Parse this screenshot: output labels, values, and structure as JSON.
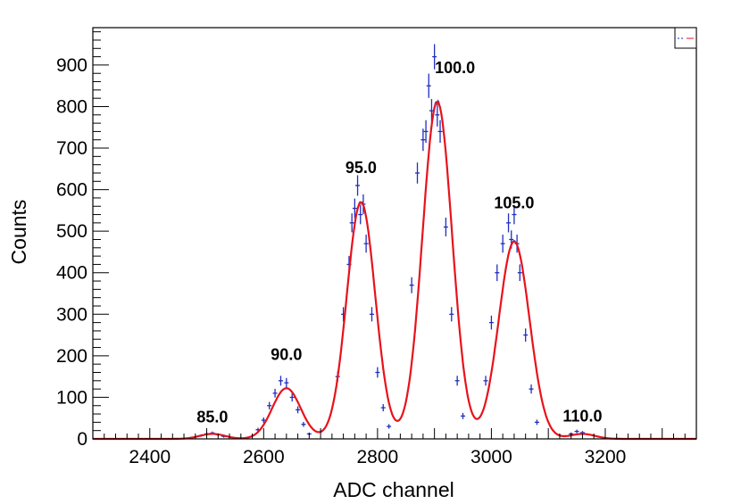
{
  "chart_data": {
    "type": "line",
    "title": "",
    "xlabel": "ADC channel",
    "ylabel": "Counts",
    "xlim": [
      2300,
      3360
    ],
    "ylim": [
      0,
      990
    ],
    "grid": false,
    "legend": "top-right",
    "x_ticks": [
      2400,
      2600,
      2800,
      3000,
      3200
    ],
    "y_ticks": [
      0,
      100,
      200,
      300,
      400,
      500,
      600,
      700,
      800,
      900
    ],
    "colors": {
      "data": "#1f2fbf",
      "fit": "#e8121b",
      "axis": "#000000"
    },
    "series": [
      {
        "role": "histogram with error bars",
        "style": "dashed",
        "x": [
          2490,
          2500,
          2510,
          2520,
          2530,
          2590,
          2600,
          2610,
          2620,
          2630,
          2640,
          2650,
          2660,
          2670,
          2680,
          2730,
          2740,
          2750,
          2755,
          2760,
          2765,
          2770,
          2775,
          2780,
          2790,
          2800,
          2810,
          2820,
          2860,
          2870,
          2880,
          2885,
          2890,
          2895,
          2900,
          2905,
          2910,
          2920,
          2930,
          2940,
          2950,
          2990,
          3000,
          3010,
          3020,
          3030,
          3035,
          3040,
          3045,
          3050,
          3060,
          3070,
          3080,
          3140,
          3150,
          3160
        ],
        "y": [
          8,
          12,
          14,
          10,
          6,
          22,
          45,
          80,
          110,
          140,
          135,
          100,
          70,
          35,
          12,
          150,
          300,
          420,
          520,
          555,
          610,
          540,
          565,
          470,
          300,
          160,
          75,
          30,
          370,
          640,
          720,
          740,
          850,
          790,
          920,
          780,
          740,
          510,
          300,
          140,
          55,
          140,
          280,
          400,
          470,
          520,
          480,
          540,
          470,
          400,
          250,
          120,
          40,
          12,
          18,
          15
        ]
      },
      {
        "role": "fit",
        "style": "solid",
        "peaks": [
          {
            "mean": 2510,
            "amplitude": 12,
            "sigma": 22
          },
          {
            "mean": 2640,
            "amplitude": 122,
            "sigma": 25
          },
          {
            "mean": 2771,
            "amplitude": 570,
            "sigma": 25
          },
          {
            "mean": 2905,
            "amplitude": 812,
            "sigma": 26
          },
          {
            "mean": 3040,
            "amplitude": 475,
            "sigma": 27
          },
          {
            "mean": 3160,
            "amplitude": 12,
            "sigma": 22
          }
        ],
        "x_range": [
          2300,
          3360
        ]
      }
    ],
    "annotations": [
      {
        "text": "85.0",
        "x": 2510,
        "y": 40
      },
      {
        "text": "90.0",
        "x": 2640,
        "y": 190
      },
      {
        "text": "95.0",
        "x": 2771,
        "y": 640
      },
      {
        "text": "100.0",
        "x": 2936,
        "y": 880
      },
      {
        "text": "105.0",
        "x": 3040,
        "y": 555
      },
      {
        "text": "110.0",
        "x": 3160,
        "y": 42
      }
    ]
  }
}
